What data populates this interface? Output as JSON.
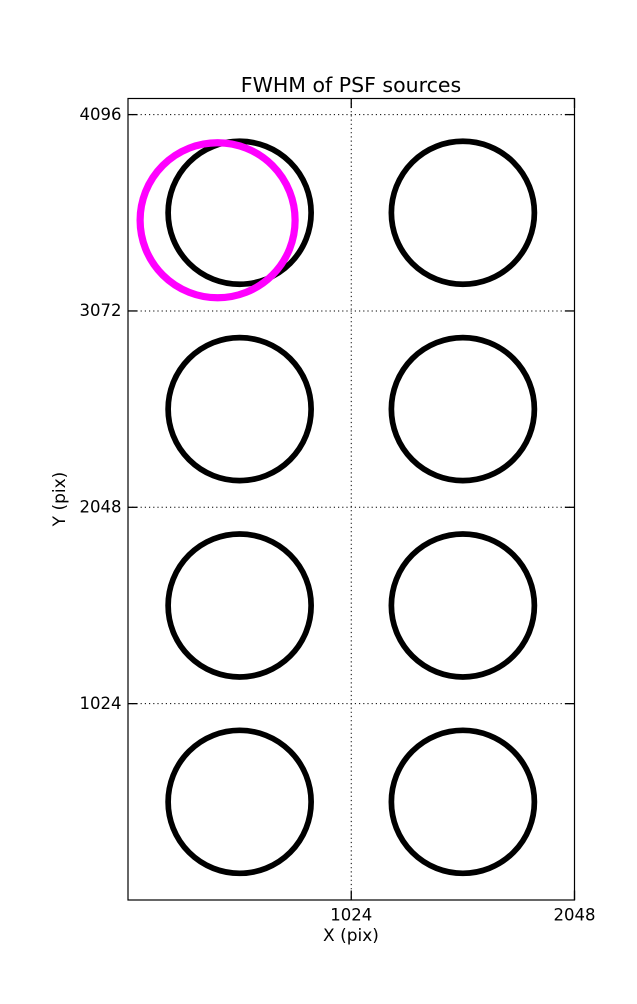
{
  "chart_data": {
    "type": "scatter",
    "title": "FWHM of PSF sources",
    "xlabel": "X (pix)",
    "ylabel": "Y (pix)",
    "xlim": [
      0,
      2048
    ],
    "ylim": [
      0,
      4180
    ],
    "xticks": [
      1024,
      2048
    ],
    "yticks": [
      1024,
      2048,
      3072,
      4096
    ],
    "grid": {
      "style": "dotted",
      "color": "#000000",
      "x_gridlines": [
        1024
      ],
      "y_gridlines": [
        1024,
        2048,
        3072,
        4096
      ]
    },
    "legend": "none",
    "colors": {
      "frame": "#000000",
      "psf_marker": "#000000",
      "highlight_marker": "#ff00ff",
      "background": "#ffffff"
    },
    "series": [
      {
        "id": "psf-sources",
        "name": "PSF source FWHM circles",
        "color": "#000000",
        "marker": "circle-outline",
        "marker_radius_px": 71.5,
        "stroke_px": 5.7,
        "points": [
          {
            "x": 512,
            "y": 512
          },
          {
            "x": 512,
            "y": 1536
          },
          {
            "x": 512,
            "y": 2560
          },
          {
            "x": 512,
            "y": 3584
          },
          {
            "x": 1536,
            "y": 512
          },
          {
            "x": 1536,
            "y": 1536
          },
          {
            "x": 1536,
            "y": 2560
          },
          {
            "x": 1536,
            "y": 3584
          }
        ]
      },
      {
        "id": "highlighted-source",
        "name": "Highlighted source FWHM circle",
        "color": "#ff00ff",
        "marker": "circle-outline",
        "marker_radius_px": 77.5,
        "stroke_px": 7.2,
        "points": [
          {
            "x": 411,
            "y": 3545
          }
        ]
      }
    ]
  }
}
